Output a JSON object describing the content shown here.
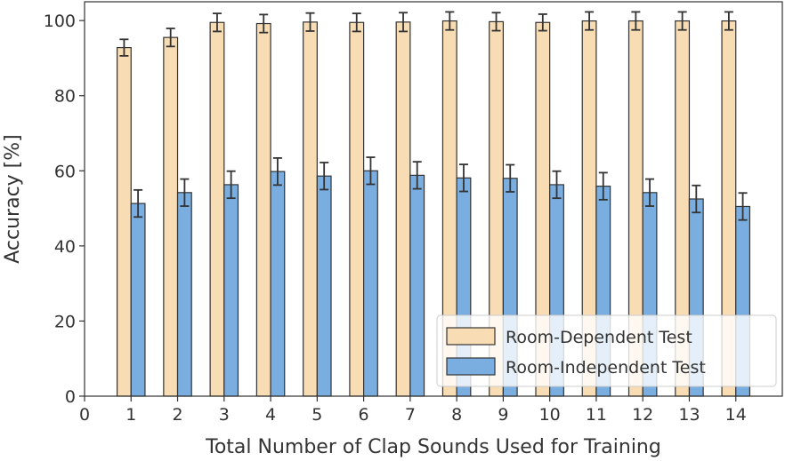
{
  "chart_data": {
    "type": "bar",
    "xlabel": "Total Number of Clap Sounds Used for Training",
    "ylabel": "Accuracy [%]",
    "xlim": [
      0,
      15
    ],
    "ylim": [
      0,
      105
    ],
    "x_ticks": [
      0,
      1,
      2,
      3,
      4,
      5,
      6,
      7,
      8,
      9,
      10,
      11,
      12,
      13,
      14
    ],
    "y_ticks": [
      0,
      20,
      40,
      60,
      80,
      100
    ],
    "categories": [
      1,
      2,
      3,
      4,
      5,
      6,
      7,
      8,
      9,
      10,
      11,
      12,
      13,
      14
    ],
    "series": [
      {
        "name": "Room-Dependent Test",
        "color": "#f7dcb4",
        "values": [
          92.8,
          95.5,
          99.5,
          99.2,
          99.6,
          99.5,
          99.6,
          99.9,
          99.7,
          99.5,
          99.9,
          99.9,
          99.9,
          99.9
        ],
        "errors": [
          2.2,
          2.4,
          2.4,
          2.4,
          2.4,
          2.4,
          2.5,
          2.4,
          2.4,
          2.2,
          2.4,
          2.4,
          2.4,
          2.4
        ]
      },
      {
        "name": "Room-Independent Test",
        "color": "#7aaee0",
        "values": [
          51.3,
          54.2,
          56.3,
          59.8,
          58.6,
          60.0,
          58.8,
          58.1,
          58.0,
          56.3,
          55.9,
          54.2,
          52.5,
          50.5
        ],
        "errors": [
          3.6,
          3.6,
          3.6,
          3.6,
          3.6,
          3.6,
          3.6,
          3.6,
          3.6,
          3.6,
          3.6,
          3.6,
          3.6,
          3.6
        ]
      }
    ],
    "error_bars": true,
    "grid": false,
    "legend_position": "lower-right"
  }
}
